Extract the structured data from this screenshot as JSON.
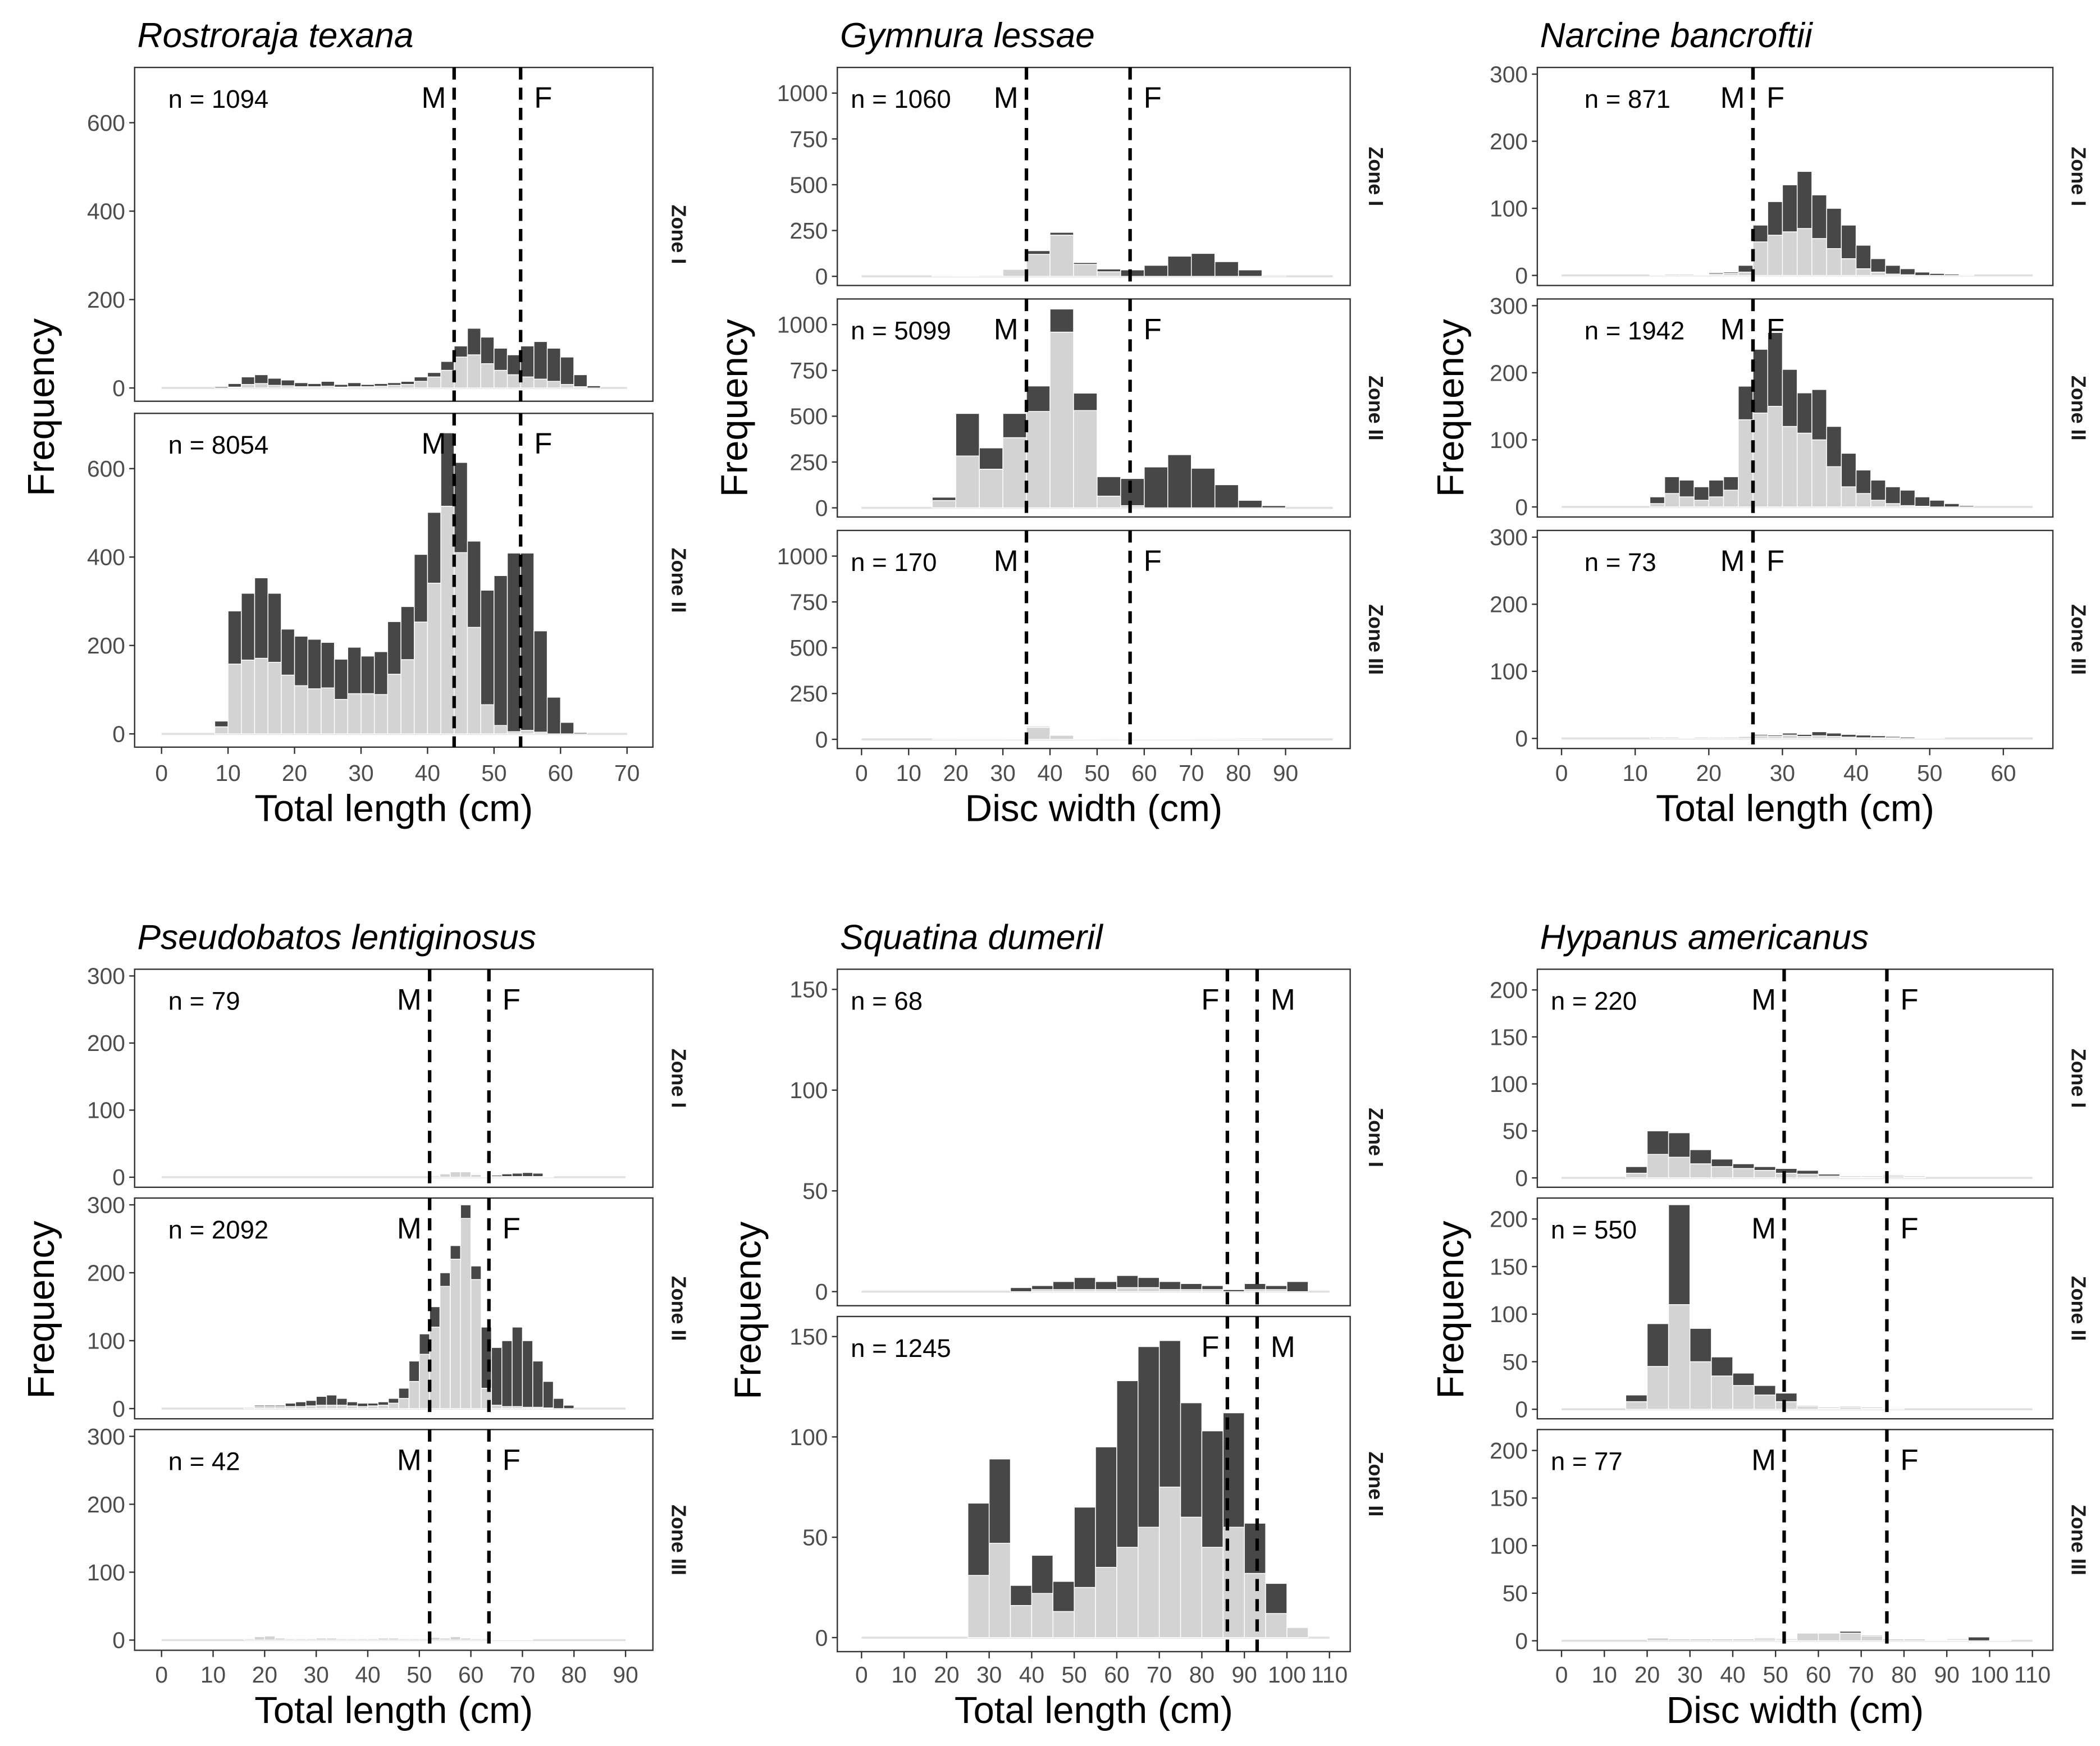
{
  "colors": {
    "light": "#d3d3d3",
    "dark": "#474747",
    "baseline": "#e0e0e0"
  },
  "chart_data": [
    {
      "type": "bar",
      "stacked": true,
      "title": "Rostroraja texana",
      "xlabel": "Total length (cm)",
      "ylabel": "Frequency",
      "xticks": [
        0,
        10,
        20,
        30,
        40,
        50,
        60,
        70
      ],
      "yticks": [
        0,
        200,
        400,
        600
      ],
      "ylim": [
        -30,
        725
      ],
      "xrange": [
        0,
        70
      ],
      "binwidth": 2,
      "bin_start": 8,
      "thresholds": [
        {
          "label": "M",
          "value": 44,
          "side": "left"
        },
        {
          "label": "F",
          "value": 54,
          "side": "right"
        }
      ],
      "zones": [
        {
          "name": "Zone I",
          "n": "n = 1094",
          "total": [
            3,
            10,
            25,
            30,
            22,
            18,
            12,
            10,
            15,
            8,
            12,
            8,
            10,
            12,
            15,
            25,
            35,
            60,
            95,
            135,
            115,
            90,
            75,
            95,
            105,
            90,
            70,
            30,
            5
          ],
          "light": [
            0,
            2,
            8,
            10,
            6,
            5,
            3,
            3,
            4,
            2,
            3,
            3,
            4,
            6,
            8,
            15,
            25,
            40,
            70,
            75,
            55,
            40,
            30,
            25,
            20,
            15,
            8,
            3,
            0
          ]
        },
        {
          "name": "Zone II",
          "n": "n = 8054",
          "total": [
            29,
            278,
            318,
            353,
            318,
            237,
            221,
            214,
            207,
            169,
            196,
            176,
            186,
            254,
            288,
            406,
            501,
            681,
            614,
            436,
            325,
            358,
            409,
            409,
            233,
            83,
            26,
            3
          ],
          "light": [
            16,
            158,
            167,
            171,
            162,
            133,
            109,
            102,
            104,
            78,
            91,
            91,
            89,
            135,
            168,
            253,
            341,
            515,
            410,
            241,
            66,
            19,
            5,
            8,
            4,
            0,
            0,
            0
          ]
        }
      ]
    },
    {
      "type": "bar",
      "stacked": true,
      "title": "Gymnura lessae",
      "xlabel": "Disc width (cm)",
      "ylabel": "Frequency",
      "xticks": [
        0,
        10,
        20,
        30,
        40,
        50,
        60,
        70,
        80,
        90
      ],
      "yticks": [
        0,
        250,
        500,
        750,
        1000
      ],
      "ylim": [
        -50,
        1140
      ],
      "xrange": [
        0,
        100
      ],
      "binwidth": 5,
      "bin_start": 15,
      "thresholds": [
        {
          "label": "M",
          "value": 35,
          "side": "left"
        },
        {
          "label": "F",
          "value": 57,
          "side": "right"
        }
      ],
      "zones": [
        {
          "name": "Zone I",
          "n": "n = 1060",
          "total": [
            3,
            5,
            8,
            40,
            140,
            240,
            75,
            40,
            35,
            60,
            110,
            125,
            80,
            35,
            5
          ],
          "light": [
            2,
            4,
            6,
            38,
            120,
            225,
            65,
            25,
            0,
            0,
            0,
            0,
            0,
            0,
            0
          ]
        },
        {
          "name": "Zone II",
          "n": "n = 5099",
          "total": [
            58,
            515,
            327,
            515,
            665,
            1085,
            626,
            170,
            160,
            223,
            290,
            216,
            126,
            41,
            12
          ],
          "light": [
            40,
            283,
            211,
            383,
            526,
            959,
            531,
            64,
            12,
            0,
            0,
            0,
            0,
            0,
            0
          ]
        },
        {
          "name": "Zone III",
          "n": "n = 170",
          "total": [
            2,
            3,
            3,
            5,
            70,
            25,
            5,
            3,
            5,
            5,
            4,
            3,
            2,
            1,
            0
          ],
          "light": [
            2,
            3,
            3,
            5,
            65,
            22,
            3,
            2,
            2,
            2,
            1,
            1,
            0,
            0,
            0
          ]
        }
      ]
    },
    {
      "type": "bar",
      "stacked": true,
      "title": "Narcine bancroftii",
      "xlabel": "Total length (cm)",
      "ylabel": "Frequency",
      "xticks": [
        0,
        10,
        20,
        30,
        40,
        50,
        60
      ],
      "yticks": [
        0,
        100,
        200,
        300
      ],
      "ylim": [
        -15,
        310
      ],
      "xrange": [
        0,
        64
      ],
      "binwidth": 2,
      "bin_start": 12,
      "thresholds": [
        {
          "label": "M",
          "value": 26,
          "side": "left"
        },
        {
          "label": "F",
          "value": 26,
          "side": "right"
        }
      ],
      "zones": [
        {
          "name": "Zone I",
          "n": "n = 871",
          "total": [
            2,
            3,
            3,
            2,
            4,
            5,
            15,
            75,
            110,
            135,
            155,
            120,
            100,
            75,
            45,
            25,
            15,
            10,
            5,
            3,
            2,
            1
          ],
          "light": [
            1,
            2,
            2,
            1,
            2,
            3,
            5,
            50,
            60,
            65,
            70,
            55,
            40,
            25,
            10,
            5,
            2,
            1,
            0,
            0,
            0,
            0
          ]
        },
        {
          "name": "Zone II",
          "n": "n = 1942",
          "total": [
            15,
            45,
            40,
            30,
            40,
            45,
            180,
            235,
            260,
            205,
            170,
            175,
            120,
            80,
            55,
            40,
            30,
            25,
            15,
            10,
            5,
            2
          ],
          "light": [
            5,
            20,
            15,
            10,
            15,
            25,
            130,
            140,
            150,
            120,
            110,
            100,
            60,
            30,
            20,
            10,
            5,
            2,
            1,
            0,
            0,
            0
          ]
        },
        {
          "name": "Zone III",
          "n": "n = 73",
          "total": [
            2,
            2,
            1,
            2,
            3,
            2,
            4,
            6,
            5,
            8,
            6,
            10,
            8,
            6,
            5,
            4,
            3,
            2,
            1,
            1,
            0,
            0
          ],
          "light": [
            2,
            2,
            1,
            2,
            2,
            2,
            3,
            4,
            3,
            5,
            3,
            4,
            3,
            2,
            1,
            1,
            1,
            0,
            0,
            0,
            0,
            0
          ]
        }
      ]
    },
    {
      "type": "bar",
      "stacked": true,
      "title": "Pseudobatos lentiginosus",
      "xlabel": "Total length (cm)",
      "ylabel": "Frequency",
      "xticks": [
        0,
        10,
        20,
        30,
        40,
        50,
        60,
        70,
        80,
        90
      ],
      "yticks": [
        0,
        100,
        200,
        300
      ],
      "ylim": [
        -15,
        310
      ],
      "xrange": [
        0,
        90
      ],
      "binwidth": 2,
      "bin_start": 16,
      "thresholds": [
        {
          "label": "M",
          "value": 52,
          "side": "left"
        },
        {
          "label": "F",
          "value": 63.5,
          "side": "right"
        }
      ],
      "zones": [
        {
          "name": "Zone I",
          "n": "n = 79",
          "total": [
            0,
            0,
            0,
            0,
            0,
            0,
            0,
            0,
            0,
            0,
            0,
            0,
            0,
            0,
            0,
            0,
            0,
            0,
            2,
            5,
            8,
            8,
            5,
            2,
            3,
            5,
            6,
            7,
            6,
            2,
            0,
            0
          ],
          "light": [
            0,
            0,
            0,
            0,
            0,
            0,
            0,
            0,
            0,
            0,
            0,
            0,
            0,
            0,
            0,
            0,
            0,
            0,
            2,
            5,
            8,
            8,
            4,
            1,
            1,
            1,
            1,
            1,
            1,
            1,
            0,
            0
          ]
        },
        {
          "name": "Zone II",
          "n": "n = 2092",
          "total": [
            3,
            5,
            5,
            5,
            8,
            10,
            12,
            18,
            20,
            15,
            10,
            8,
            8,
            10,
            15,
            30,
            70,
            110,
            150,
            200,
            240,
            300,
            210,
            120,
            90,
            100,
            120,
            100,
            70,
            40,
            15,
            5
          ],
          "light": [
            2,
            3,
            3,
            3,
            3,
            3,
            4,
            5,
            5,
            5,
            4,
            3,
            4,
            5,
            8,
            15,
            40,
            80,
            120,
            180,
            220,
            280,
            190,
            30,
            5,
            3,
            3,
            2,
            2,
            1,
            0,
            0
          ]
        },
        {
          "name": "Zone III",
          "n": "n = 42",
          "total": [
            2,
            5,
            6,
            3,
            2,
            2,
            2,
            3,
            3,
            2,
            2,
            2,
            2,
            3,
            3,
            2,
            2,
            2,
            4,
            3,
            5,
            3,
            2,
            2,
            1,
            1,
            1,
            1,
            0,
            0,
            0,
            0
          ],
          "light": [
            2,
            5,
            6,
            3,
            2,
            2,
            2,
            3,
            3,
            2,
            2,
            2,
            2,
            3,
            3,
            2,
            2,
            2,
            4,
            3,
            5,
            3,
            2,
            2,
            1,
            1,
            1,
            1,
            0,
            0,
            0,
            0
          ]
        }
      ]
    },
    {
      "type": "bar",
      "stacked": true,
      "title": "Squatina dumeril",
      "xlabel": "Total length (cm)",
      "ylabel": "Frequency",
      "xticks": [
        0,
        10,
        20,
        30,
        40,
        50,
        60,
        70,
        80,
        90,
        100,
        110
      ],
      "yticks": [
        0,
        50,
        100,
        150
      ],
      "ylim": [
        -7,
        160
      ],
      "xrange": [
        0,
        110
      ],
      "binwidth": 5,
      "bin_start": 25,
      "thresholds": [
        {
          "label": "F",
          "value": 86,
          "side": "left"
        },
        {
          "label": "M",
          "value": 93,
          "side": "right"
        }
      ],
      "zones": [
        {
          "name": "Zone I",
          "n": "n = 68",
          "total": [
            0,
            0,
            2,
            3,
            5,
            7,
            5,
            8,
            7,
            5,
            4,
            3,
            1,
            4,
            3,
            5
          ],
          "light": [
            0,
            0,
            0,
            1,
            1,
            1,
            1,
            2,
            2,
            1,
            1,
            1,
            0,
            1,
            1,
            0
          ]
        },
        {
          "name": "Zone II",
          "n": "n = 1245",
          "total": [
            67,
            89,
            26,
            41,
            28,
            65,
            95,
            128,
            145,
            148,
            117,
            103,
            112,
            57,
            27,
            5
          ],
          "light": [
            31,
            47,
            16,
            22,
            13,
            25,
            35,
            45,
            55,
            75,
            60,
            45,
            55,
            32,
            12,
            5
          ]
        }
      ]
    },
    {
      "type": "bar",
      "stacked": true,
      "title": "Hypanus americanus",
      "xlabel": "Disc width (cm)",
      "ylabel": "Frequency",
      "xticks": [
        0,
        10,
        20,
        30,
        40,
        50,
        60,
        70,
        80,
        90,
        100,
        110
      ],
      "yticks": [
        0,
        50,
        100,
        150,
        200
      ],
      "ylim": [
        -10,
        222
      ],
      "xrange": [
        0,
        110
      ],
      "binwidth": 5,
      "bin_start": 15,
      "thresholds": [
        {
          "label": "M",
          "value": 52,
          "side": "left"
        },
        {
          "label": "F",
          "value": 76,
          "side": "right"
        }
      ],
      "zones": [
        {
          "name": "Zone I",
          "n": "n = 220",
          "total": [
            12,
            50,
            48,
            30,
            20,
            15,
            12,
            10,
            8,
            4,
            2,
            2,
            3,
            2,
            0,
            0,
            0,
            0
          ],
          "light": [
            5,
            25,
            22,
            15,
            12,
            10,
            8,
            5,
            4,
            2,
            1,
            1,
            2,
            1,
            0,
            0,
            0,
            0
          ]
        },
        {
          "name": "Zone II",
          "n": "n = 550",
          "total": [
            15,
            90,
            215,
            85,
            55,
            38,
            25,
            17,
            4,
            2,
            3,
            2,
            1,
            0,
            0,
            0,
            0,
            0
          ],
          "light": [
            8,
            45,
            110,
            50,
            35,
            25,
            15,
            8,
            3,
            1,
            2,
            1,
            1,
            0,
            0,
            0,
            0,
            0
          ]
        },
        {
          "name": "Zone III",
          "n": "n = 77",
          "total": [
            0,
            3,
            2,
            2,
            2,
            2,
            3,
            2,
            8,
            8,
            10,
            6,
            2,
            2,
            1,
            2,
            4,
            1
          ],
          "light": [
            0,
            3,
            2,
            2,
            2,
            2,
            2,
            1,
            8,
            8,
            8,
            5,
            2,
            2,
            1,
            1,
            0,
            1
          ]
        }
      ]
    }
  ]
}
